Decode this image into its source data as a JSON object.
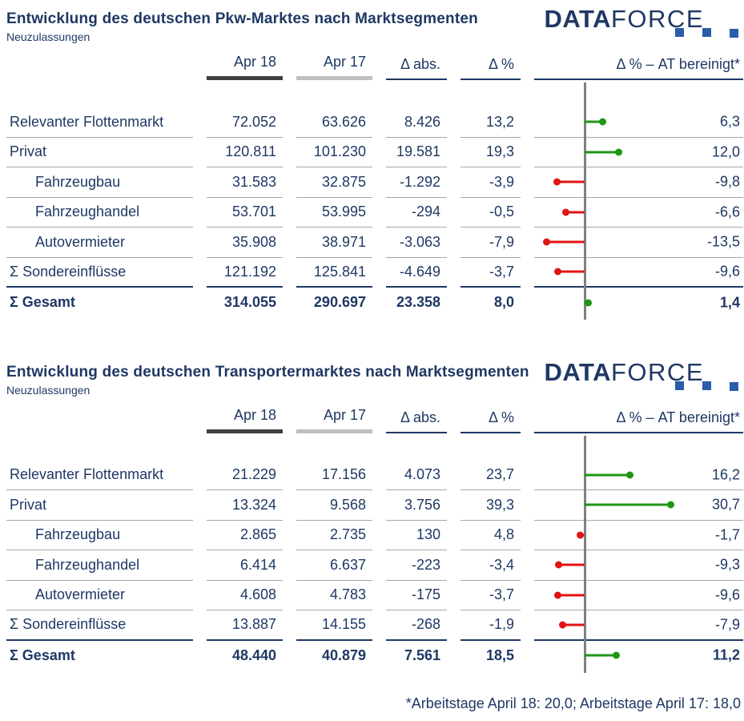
{
  "logo": {
    "bold": "DATA",
    "light": "FORCE"
  },
  "colors": {
    "text": "#1F3864",
    "positive": "#1E9614",
    "negative": "#E01414",
    "axis": "#808080",
    "separator_light": "#A6A6A6",
    "separator_dark": "#1F3864",
    "header_bar_apr18": "#404040",
    "header_bar_apr17": "#BFBFBF",
    "logo_square": "#2A5CAA"
  },
  "footnote": "*Arbeitstage April 18: 20,0; Arbeitstage April 17: 18,0",
  "tables": [
    {
      "title": "Entwicklung des deutschen Pkw-Marktes nach Marktsegmenten",
      "subtitle": "Neuzulassungen",
      "columns": [
        "Apr 18",
        "Apr 17",
        "Δ abs.",
        "Δ %",
        "Δ % – AT bereinigt*"
      ],
      "rows": [
        {
          "label": "Relevanter Flottenmarkt",
          "indent": false,
          "bold": false,
          "sep": "light",
          "apr18": "72.052",
          "apr17": "63.626",
          "delta_abs": "8.426",
          "delta_pct": "13,2",
          "at_label": "6,3",
          "at_value": 6.3
        },
        {
          "label": "Privat",
          "indent": false,
          "bold": false,
          "sep": "light",
          "apr18": "120.811",
          "apr17": "101.230",
          "delta_abs": "19.581",
          "delta_pct": "19,3",
          "at_label": "12,0",
          "at_value": 12.0
        },
        {
          "label": "Fahrzeugbau",
          "indent": true,
          "bold": false,
          "sep": "light",
          "apr18": "31.583",
          "apr17": "32.875",
          "delta_abs": "-1.292",
          "delta_pct": "-3,9",
          "at_label": "-9,8",
          "at_value": -9.8
        },
        {
          "label": "Fahrzeughandel",
          "indent": true,
          "bold": false,
          "sep": "light",
          "apr18": "53.701",
          "apr17": "53.995",
          "delta_abs": "-294",
          "delta_pct": "-0,5",
          "at_label": "-6,6",
          "at_value": -6.6
        },
        {
          "label": "Autovermieter",
          "indent": true,
          "bold": false,
          "sep": "light",
          "apr18": "35.908",
          "apr17": "38.971",
          "delta_abs": "-3.063",
          "delta_pct": "-7,9",
          "at_label": "-13,5",
          "at_value": -13.5
        },
        {
          "label": "Σ Sondereinflüsse",
          "indent": false,
          "bold": false,
          "sep": "dark",
          "apr18": "121.192",
          "apr17": "125.841",
          "delta_abs": "-4.649",
          "delta_pct": "-3,7",
          "at_label": "-9,6",
          "at_value": -9.6
        },
        {
          "label": "Σ Gesamt",
          "indent": false,
          "bold": true,
          "sep": "none",
          "apr18": "314.055",
          "apr17": "290.697",
          "delta_abs": "23.358",
          "delta_pct": "8,0",
          "at_label": "1,4",
          "at_value": 1.4
        }
      ]
    },
    {
      "title": "Entwicklung des deutschen Transportermarktes nach Marktsegmenten",
      "subtitle": "Neuzulassungen",
      "columns": [
        "Apr 18",
        "Apr 17",
        "Δ abs.",
        "Δ %",
        "Δ % – AT bereinigt*"
      ],
      "rows": [
        {
          "label": "Relevanter Flottenmarkt",
          "indent": false,
          "bold": false,
          "sep": "light",
          "apr18": "21.229",
          "apr17": "17.156",
          "delta_abs": "4.073",
          "delta_pct": "23,7",
          "at_label": "16,2",
          "at_value": 16.2
        },
        {
          "label": "Privat",
          "indent": false,
          "bold": false,
          "sep": "light",
          "apr18": "13.324",
          "apr17": "9.568",
          "delta_abs": "3.756",
          "delta_pct": "39,3",
          "at_label": "30,7",
          "at_value": 30.7
        },
        {
          "label": "Fahrzeugbau",
          "indent": true,
          "bold": false,
          "sep": "light",
          "apr18": "2.865",
          "apr17": "2.735",
          "delta_abs": "130",
          "delta_pct": "4,8",
          "at_label": "-1,7",
          "at_value": -1.7
        },
        {
          "label": "Fahrzeughandel",
          "indent": true,
          "bold": false,
          "sep": "light",
          "apr18": "6.414",
          "apr17": "6.637",
          "delta_abs": "-223",
          "delta_pct": "-3,4",
          "at_label": "-9,3",
          "at_value": -9.3
        },
        {
          "label": "Autovermieter",
          "indent": true,
          "bold": false,
          "sep": "light",
          "apr18": "4.608",
          "apr17": "4.783",
          "delta_abs": "-175",
          "delta_pct": "-3,7",
          "at_label": "-9,6",
          "at_value": -9.6
        },
        {
          "label": "Σ Sondereinflüsse",
          "indent": false,
          "bold": false,
          "sep": "dark",
          "apr18": "13.887",
          "apr17": "14.155",
          "delta_abs": "-268",
          "delta_pct": "-1,9",
          "at_label": "-7,9",
          "at_value": -7.9
        },
        {
          "label": "Σ Gesamt",
          "indent": false,
          "bold": true,
          "sep": "none",
          "apr18": "48.440",
          "apr17": "40.879",
          "delta_abs": "7.561",
          "delta_pct": "18,5",
          "at_label": "11,2",
          "at_value": 11.2
        }
      ]
    }
  ],
  "chart_data": [
    {
      "type": "bar",
      "title": "Entwicklung des deutschen Pkw-Marktes nach Marktsegmenten",
      "subtitle": "Neuzulassungen",
      "categories": [
        "Relevanter Flottenmarkt",
        "Privat",
        "Fahrzeugbau",
        "Fahrzeughandel",
        "Autovermieter",
        "Σ Sondereinflüsse",
        "Σ Gesamt"
      ],
      "series": [
        {
          "name": "Apr 18",
          "values": [
            72052,
            120811,
            31583,
            53701,
            35908,
            121192,
            314055
          ]
        },
        {
          "name": "Apr 17",
          "values": [
            63626,
            101230,
            32875,
            53995,
            38971,
            125841,
            290697
          ]
        },
        {
          "name": "Δ abs.",
          "values": [
            8426,
            19581,
            -1292,
            -294,
            -3063,
            -4649,
            23358
          ]
        },
        {
          "name": "Δ %",
          "values": [
            13.2,
            19.3,
            -3.9,
            -0.5,
            -7.9,
            -3.7,
            8.0
          ]
        },
        {
          "name": "Δ % – AT bereinigt*",
          "values": [
            6.3,
            12.0,
            -9.8,
            -6.6,
            -13.5,
            -9.6,
            1.4
          ]
        }
      ],
      "plotted_series": "Δ % – AT bereinigt*",
      "orientation": "horizontal",
      "xlim": [
        -18,
        56
      ],
      "grid": false,
      "positive_color": "#1E9614",
      "negative_color": "#E01414"
    },
    {
      "type": "bar",
      "title": "Entwicklung des deutschen Transportermarktes nach Marktsegmenten",
      "subtitle": "Neuzulassungen",
      "categories": [
        "Relevanter Flottenmarkt",
        "Privat",
        "Fahrzeugbau",
        "Fahrzeughandel",
        "Autovermieter",
        "Σ Sondereinflüsse",
        "Σ Gesamt"
      ],
      "series": [
        {
          "name": "Apr 18",
          "values": [
            21229,
            13324,
            2865,
            6414,
            4608,
            13887,
            48440
          ]
        },
        {
          "name": "Apr 17",
          "values": [
            17156,
            9568,
            2735,
            6637,
            4783,
            14155,
            40879
          ]
        },
        {
          "name": "Δ abs.",
          "values": [
            4073,
            3756,
            130,
            -223,
            -175,
            -268,
            7561
          ]
        },
        {
          "name": "Δ %",
          "values": [
            23.7,
            39.3,
            4.8,
            -3.4,
            -3.7,
            -1.9,
            18.5
          ]
        },
        {
          "name": "Δ % – AT bereinigt*",
          "values": [
            16.2,
            30.7,
            -1.7,
            -9.3,
            -9.6,
            -7.9,
            11.2
          ]
        }
      ],
      "plotted_series": "Δ % – AT bereinigt*",
      "orientation": "horizontal",
      "xlim": [
        -18,
        56
      ],
      "grid": false,
      "positive_color": "#1E9614",
      "negative_color": "#E01414"
    }
  ]
}
